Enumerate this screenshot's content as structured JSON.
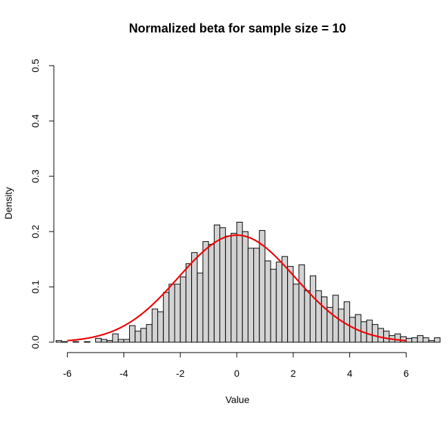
{
  "chart_data": {
    "type": "histogram",
    "title": "Normalized beta for sample size =  10",
    "xlabel": "Value",
    "ylabel": "Density",
    "xlim": [
      -6.4,
      6.4
    ],
    "ylim": [
      0,
      0.5
    ],
    "x_ticks": [
      -6,
      -4,
      -2,
      0,
      2,
      4,
      6
    ],
    "x_tick_labels": [
      "-6",
      "-4",
      "-2",
      "0",
      "2",
      "4",
      "6"
    ],
    "y_ticks": [
      0.0,
      0.1,
      0.2,
      0.3,
      0.4,
      0.5
    ],
    "y_tick_labels": [
      "0.0",
      "0.1",
      "0.2",
      "0.3",
      "0.4",
      "0.5"
    ],
    "bins": {
      "start": -6.4,
      "width": 0.2,
      "densities": [
        0.003,
        0.001,
        0.0,
        0.001,
        0.0,
        0.001,
        0.0,
        0.007,
        0.005,
        0.003,
        0.015,
        0.005,
        0.005,
        0.03,
        0.02,
        0.025,
        0.032,
        0.06,
        0.055,
        0.09,
        0.105,
        0.105,
        0.118,
        0.142,
        0.162,
        0.125,
        0.182,
        0.177,
        0.212,
        0.207,
        0.192,
        0.197,
        0.217,
        0.2,
        0.17,
        0.17,
        0.202,
        0.147,
        0.132,
        0.145,
        0.155,
        0.137,
        0.105,
        0.14,
        0.093,
        0.12,
        0.093,
        0.082,
        0.063,
        0.085,
        0.06,
        0.073,
        0.045,
        0.05,
        0.037,
        0.04,
        0.032,
        0.025,
        0.02,
        0.012,
        0.015,
        0.01,
        0.007,
        0.008,
        0.012,
        0.008,
        0.003,
        0.008
      ]
    },
    "curve": {
      "type": "normal-density",
      "mean": 0,
      "sd": 2.06,
      "x_range": [
        -6,
        6
      ],
      "color": "#ee0000"
    },
    "bar_fill": "#d3d3d3",
    "grid": false,
    "legend": "none"
  }
}
